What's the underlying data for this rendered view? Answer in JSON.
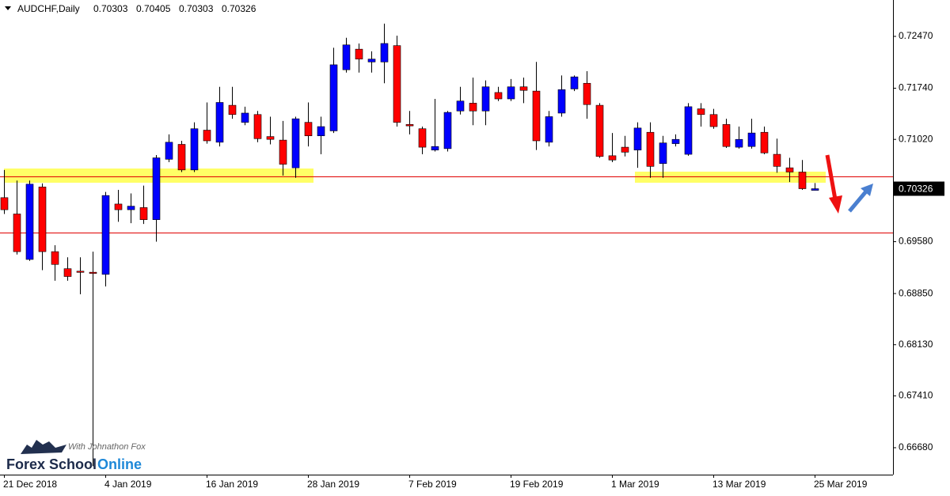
{
  "chart_data": {
    "type": "candlestick",
    "title": "AUDCHF,Daily",
    "categories": [
      "21 Dec 2018",
      null,
      null,
      null,
      null,
      null,
      null,
      null,
      "4 Jan 2019",
      null,
      null,
      null,
      null,
      null,
      null,
      null,
      "16 Jan 2019",
      null,
      null,
      null,
      null,
      null,
      null,
      null,
      "28 Jan 2019",
      null,
      null,
      null,
      null,
      null,
      null,
      null,
      "7 Feb 2019",
      null,
      null,
      null,
      null,
      null,
      null,
      null,
      "19 Feb 2019",
      null,
      null,
      null,
      null,
      null,
      null,
      null,
      "1 Mar 2019",
      null,
      null,
      null,
      null,
      null,
      null,
      null,
      "13 Mar 2019",
      null,
      null,
      null,
      null,
      null,
      null,
      null,
      "25 Mar 2019"
    ],
    "open": [
      0.702,
      0.6997,
      0.6933,
      0.7035,
      0.6944,
      0.692,
      0.69165,
      0.6915,
      0.6912,
      0.7011,
      0.7003,
      0.7006,
      0.6989,
      0.7074,
      0.7095,
      0.7059,
      0.7115,
      0.7098,
      0.715,
      0.7126,
      0.7137,
      0.7106,
      0.7101,
      0.7062,
      0.7126,
      0.7107,
      0.7114,
      0.72,
      0.7229,
      0.7211,
      0.7211,
      0.7234,
      0.7123,
      0.7117,
      0.7087,
      0.7089,
      0.7142,
      0.7153,
      0.7142,
      0.7168,
      0.7159,
      0.7176,
      0.717,
      0.7098,
      0.7139,
      0.7173,
      0.7181,
      0.715,
      0.7079,
      0.7091,
      0.7087,
      0.7112,
      0.7068,
      0.7096,
      0.7081,
      0.7145,
      0.7137,
      0.7123,
      0.7091,
      0.7092,
      0.7112,
      0.7081,
      0.7062,
      0.7056,
      0.70303
    ],
    "high": [
      0.7059,
      0.7044,
      0.7044,
      0.704,
      0.6953,
      0.6936,
      0.6936,
      0.6944,
      0.7028,
      0.7031,
      0.7026,
      0.7037,
      0.708,
      0.7109,
      0.71,
      0.7126,
      0.7154,
      0.7176,
      0.7176,
      0.7148,
      0.7142,
      0.7134,
      0.7128,
      0.7134,
      0.7154,
      0.7134,
      0.7231,
      0.7245,
      0.7237,
      0.7226,
      0.7265,
      0.7248,
      0.7142,
      0.712,
      0.7159,
      0.7142,
      0.7176,
      0.7189,
      0.7185,
      0.7176,
      0.7187,
      0.7189,
      0.7211,
      0.7142,
      0.7192,
      0.7192,
      0.7198,
      0.7153,
      0.7111,
      0.7107,
      0.7126,
      0.7126,
      0.7107,
      0.7109,
      0.7153,
      0.7153,
      0.7145,
      0.7131,
      0.712,
      0.7131,
      0.712,
      0.7103,
      0.7076,
      0.7073,
      0.70405
    ],
    "low": [
      0.6997,
      0.694,
      0.6931,
      0.6918,
      0.6903,
      0.6903,
      0.6884,
      0.6642,
      0.6895,
      0.6986,
      0.6984,
      0.6983,
      0.6958,
      0.707,
      0.7056,
      0.7056,
      0.7096,
      0.7092,
      0.7131,
      0.7122,
      0.7098,
      0.7095,
      0.7051,
      0.7048,
      0.7092,
      0.7081,
      0.7111,
      0.7196,
      0.7196,
      0.7196,
      0.7181,
      0.712,
      0.7109,
      0.7081,
      0.7085,
      0.7085,
      0.7137,
      0.7122,
      0.7122,
      0.7156,
      0.7156,
      0.7153,
      0.7087,
      0.7092,
      0.7134,
      0.717,
      0.7131,
      0.7076,
      0.707,
      0.7078,
      0.7062,
      0.7048,
      0.7048,
      0.7092,
      0.7079,
      0.712,
      0.7117,
      0.709,
      0.7089,
      0.7089,
      0.7081,
      0.7055,
      0.7042,
      0.7031,
      0.70303
    ],
    "close": [
      0.7003,
      0.6944,
      0.7039,
      0.6944,
      0.6926,
      0.6909,
      0.69155,
      0.6914,
      0.7023,
      0.7003,
      0.7008,
      0.6989,
      0.7076,
      0.7098,
      0.7059,
      0.7117,
      0.71,
      0.7154,
      0.7137,
      0.7139,
      0.7103,
      0.7102,
      0.7067,
      0.7131,
      0.7107,
      0.712,
      0.7207,
      0.7235,
      0.7215,
      0.7215,
      0.7237,
      0.7126,
      0.7121,
      0.7091,
      0.7092,
      0.714,
      0.7156,
      0.7142,
      0.7176,
      0.7159,
      0.7176,
      0.7171,
      0.71,
      0.7134,
      0.7172,
      0.719,
      0.7151,
      0.7078,
      0.7073,
      0.7084,
      0.7118,
      0.7064,
      0.7097,
      0.7102,
      0.7148,
      0.7137,
      0.712,
      0.7092,
      0.7102,
      0.7111,
      0.7083,
      0.7064,
      0.7056,
      0.70326,
      0.70326
    ],
    "up_color": "#0000ff",
    "down_color": "#ff0000",
    "ylim": [
      0.66301,
      0.72982
    ],
    "yticks": [
      {
        "value": 0.7247,
        "label": "0.72470"
      },
      {
        "value": 0.7174,
        "label": "0.71740"
      },
      {
        "value": 0.7102,
        "label": "0.71020"
      },
      {
        "value": 0.6958,
        "label": "0.69580"
      },
      {
        "value": 0.6885,
        "label": "0.68850"
      },
      {
        "value": 0.6813,
        "label": "0.68130"
      },
      {
        "value": 0.6741,
        "label": "0.67410"
      },
      {
        "value": 0.6668,
        "label": "0.66680"
      }
    ],
    "hlines": [
      0.70499,
      0.69709
    ],
    "hline_color": "#e00000",
    "zones": [
      {
        "from": 0.7061,
        "to": 0.7041
      },
      {
        "from": 0.70566,
        "to": 0.7041
      }
    ],
    "zone_color": "#ffff66",
    "watermark": {
      "tagline": "With Johnathon Fox",
      "name": "Forex School",
      "brand": "Online"
    }
  }
}
